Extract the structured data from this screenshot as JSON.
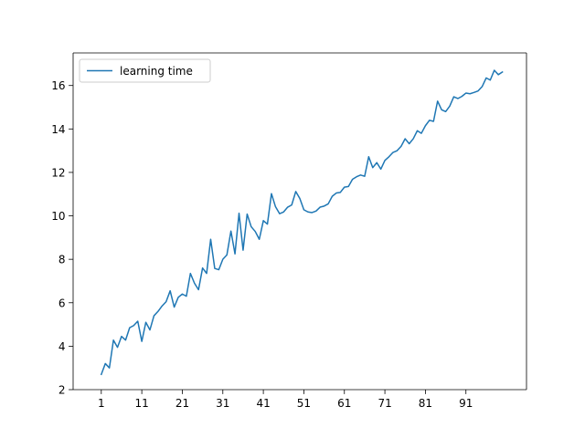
{
  "chart_data": {
    "type": "line",
    "title": "",
    "xlabel": "",
    "ylabel": "",
    "xlim": [
      -5.95,
      105.95
    ],
    "ylim": [
      2,
      17.5
    ],
    "grid": false,
    "legend_position": "top-left",
    "xticks": [
      1,
      11,
      21,
      31,
      41,
      51,
      61,
      71,
      81,
      91
    ],
    "yticks": [
      2,
      4,
      6,
      8,
      10,
      12,
      14,
      16
    ],
    "series": [
      {
        "name": "learning time",
        "color": "#1f77b4",
        "x": [
          1,
          2,
          3,
          4,
          5,
          6,
          7,
          8,
          9,
          10,
          11,
          12,
          13,
          14,
          15,
          16,
          17,
          18,
          19,
          20,
          21,
          22,
          23,
          24,
          25,
          26,
          27,
          28,
          29,
          30,
          31,
          32,
          33,
          34,
          35,
          36,
          37,
          38,
          39,
          40,
          41,
          42,
          43,
          44,
          45,
          46,
          47,
          48,
          49,
          50,
          51,
          52,
          53,
          54,
          55,
          56,
          57,
          58,
          59,
          60,
          61,
          62,
          63,
          64,
          65,
          66,
          67,
          68,
          69,
          70,
          71,
          72,
          73,
          74,
          75,
          76,
          77,
          78,
          79,
          80,
          81,
          82,
          83,
          84,
          85,
          86,
          87,
          88,
          89,
          90,
          91,
          92,
          93,
          94,
          95,
          96,
          97,
          98,
          99,
          100
        ],
        "values": [
          2.7,
          3.2,
          3.0,
          4.28,
          3.95,
          4.45,
          4.28,
          4.85,
          4.95,
          5.15,
          4.22,
          5.1,
          4.75,
          5.4,
          5.6,
          5.85,
          6.05,
          6.55,
          5.8,
          6.25,
          6.4,
          6.3,
          7.35,
          6.9,
          6.6,
          7.6,
          7.35,
          8.92,
          7.58,
          7.52,
          8.0,
          8.2,
          9.3,
          8.25,
          10.12,
          8.42,
          10.08,
          9.5,
          9.28,
          8.92,
          9.78,
          9.62,
          11.02,
          10.42,
          10.1,
          10.18,
          10.4,
          10.5,
          11.12,
          10.8,
          10.28,
          10.18,
          10.15,
          10.22,
          10.4,
          10.45,
          10.55,
          10.9,
          11.05,
          11.08,
          11.32,
          11.35,
          11.68,
          11.8,
          11.88,
          11.82,
          12.72,
          12.22,
          12.45,
          12.15,
          12.55,
          12.72,
          12.92,
          13.0,
          13.2,
          13.55,
          13.32,
          13.55,
          13.92,
          13.8,
          14.15,
          14.4,
          14.35,
          15.28,
          14.88,
          14.8,
          15.05,
          15.48,
          15.4,
          15.5,
          15.65,
          15.62,
          15.68,
          15.75,
          15.95,
          16.35,
          16.25,
          16.7,
          16.5,
          16.62
        ]
      }
    ]
  }
}
